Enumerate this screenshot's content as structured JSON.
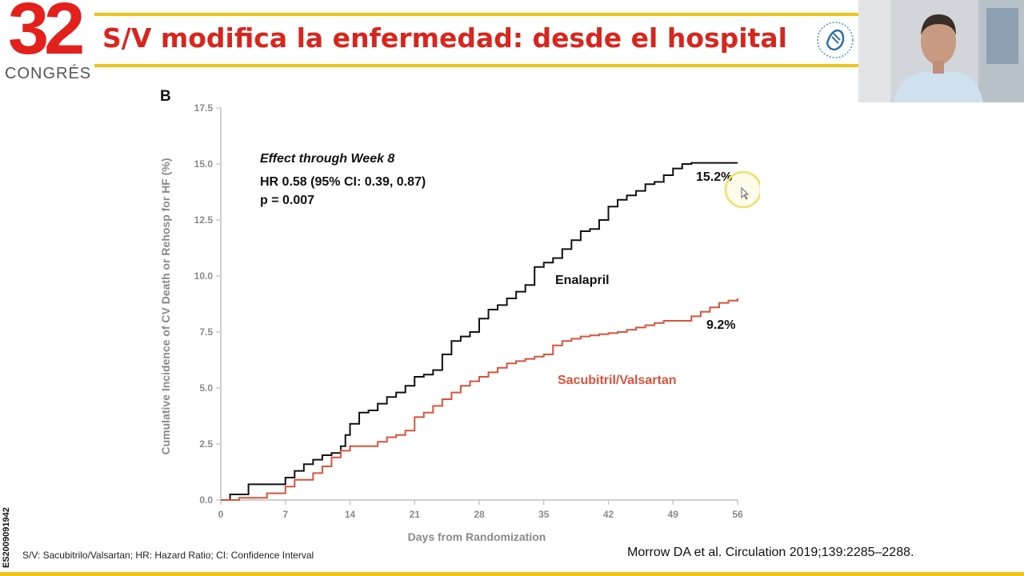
{
  "header": {
    "logo_number": "32",
    "logo_text": "CONGRÉS",
    "title": "S/V modifica la enfermedad: desde el hospital"
  },
  "colors": {
    "accent_red": "#d7261e",
    "accent_yellow": "#f2c21b",
    "enalapril_line": "#111111",
    "sacubitril_line": "#d9533d"
  },
  "chart_data": {
    "type": "line",
    "panel_label": "B",
    "xlabel": "Days from Randomization",
    "ylabel": "Cumulative Incidence of CV Death or Rehosp for HF (%)",
    "xlim": [
      0,
      56
    ],
    "ylim": [
      0,
      17.5
    ],
    "x_ticks": [
      "0",
      "7",
      "14",
      "21",
      "28",
      "35",
      "42",
      "49",
      "56"
    ],
    "y_ticks": [
      "0.0",
      "2.5",
      "5.0",
      "7.5",
      "10.0",
      "12.5",
      "15.0",
      "17.5"
    ],
    "grid": false,
    "annotation_title": "Effect through Week 8",
    "annotation_hr": "HR 0.58 (95% CI: 0.39, 0.87)",
    "annotation_p": "p = 0.007",
    "series": [
      {
        "name": "Enalapril",
        "end_label": "15.2%",
        "x": [
          0,
          1,
          3,
          6,
          7,
          8,
          9,
          10,
          11,
          12,
          13,
          13.5,
          14,
          15,
          16,
          17,
          18,
          19,
          20,
          21,
          22,
          23,
          24,
          25,
          26,
          27,
          28,
          29,
          30,
          31,
          32,
          33,
          34,
          35,
          36,
          37,
          38,
          39,
          40,
          41,
          42,
          43,
          44,
          45,
          46,
          47,
          48,
          49,
          50,
          51,
          52,
          53,
          54,
          55,
          56
        ],
        "y": [
          0,
          0.25,
          0.7,
          0.7,
          1.0,
          1.3,
          1.6,
          1.8,
          2.0,
          2.1,
          2.4,
          2.9,
          3.4,
          3.9,
          4.0,
          4.3,
          4.6,
          4.8,
          5.1,
          5.5,
          5.6,
          5.8,
          6.5,
          7.1,
          7.3,
          7.5,
          8.1,
          8.5,
          8.7,
          9.0,
          9.3,
          9.6,
          10.4,
          10.6,
          10.8,
          11.2,
          11.6,
          12.0,
          12.1,
          12.5,
          13.1,
          13.4,
          13.6,
          13.8,
          14.1,
          14.2,
          14.5,
          14.8,
          15.0,
          15.05,
          15.05,
          15.05,
          15.05,
          15.05,
          15.05
        ]
      },
      {
        "name": "Sacubitril/Valsartan",
        "end_label": "9.2%",
        "x": [
          0,
          2,
          5,
          7,
          8,
          10,
          11,
          12,
          13,
          14,
          15,
          16,
          17,
          18,
          19,
          20,
          21,
          22,
          23,
          24,
          25,
          26,
          27,
          28,
          29,
          30,
          31,
          32,
          33,
          34,
          35,
          36,
          37,
          38,
          39,
          40,
          41,
          42,
          43,
          44,
          45,
          46,
          47,
          48,
          49,
          50,
          51,
          52,
          53,
          54,
          55,
          56
        ],
        "y": [
          0,
          0.1,
          0.3,
          0.6,
          0.9,
          1.2,
          1.5,
          1.9,
          2.2,
          2.4,
          2.4,
          2.4,
          2.6,
          2.8,
          2.9,
          3.1,
          3.7,
          3.9,
          4.2,
          4.5,
          4.8,
          5.1,
          5.3,
          5.5,
          5.7,
          5.9,
          6.1,
          6.2,
          6.3,
          6.4,
          6.5,
          6.9,
          7.1,
          7.2,
          7.3,
          7.35,
          7.4,
          7.45,
          7.5,
          7.6,
          7.7,
          7.8,
          7.9,
          8.0,
          8.0,
          8.0,
          8.2,
          8.4,
          8.6,
          8.8,
          8.9,
          9.0
        ]
      }
    ]
  },
  "footer": {
    "footnote": "S/V: Sacubitrilo/Valsartan; HR: Hazard Ratio; CI: Confidence Interval",
    "citation": "Morrow DA et al. Circulation 2019;139:2285–2288.",
    "side_code": "ES2009091942"
  },
  "webcam": {
    "icon": "presenter-video-icon"
  }
}
